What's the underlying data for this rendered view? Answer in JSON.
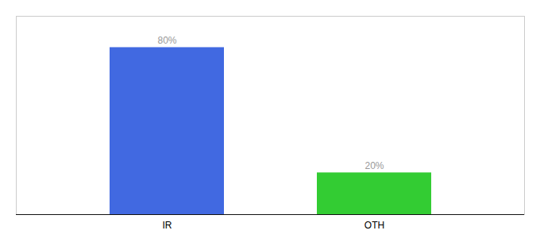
{
  "chart_data": {
    "type": "bar",
    "categories": [
      "IR",
      "OTH"
    ],
    "values": [
      80,
      20
    ],
    "value_labels": [
      "80%",
      "20%"
    ],
    "colors": [
      "#4169e1",
      "#33cc33"
    ],
    "ylim": [
      0,
      95
    ],
    "data_labels": true,
    "tick_labels": "x"
  }
}
